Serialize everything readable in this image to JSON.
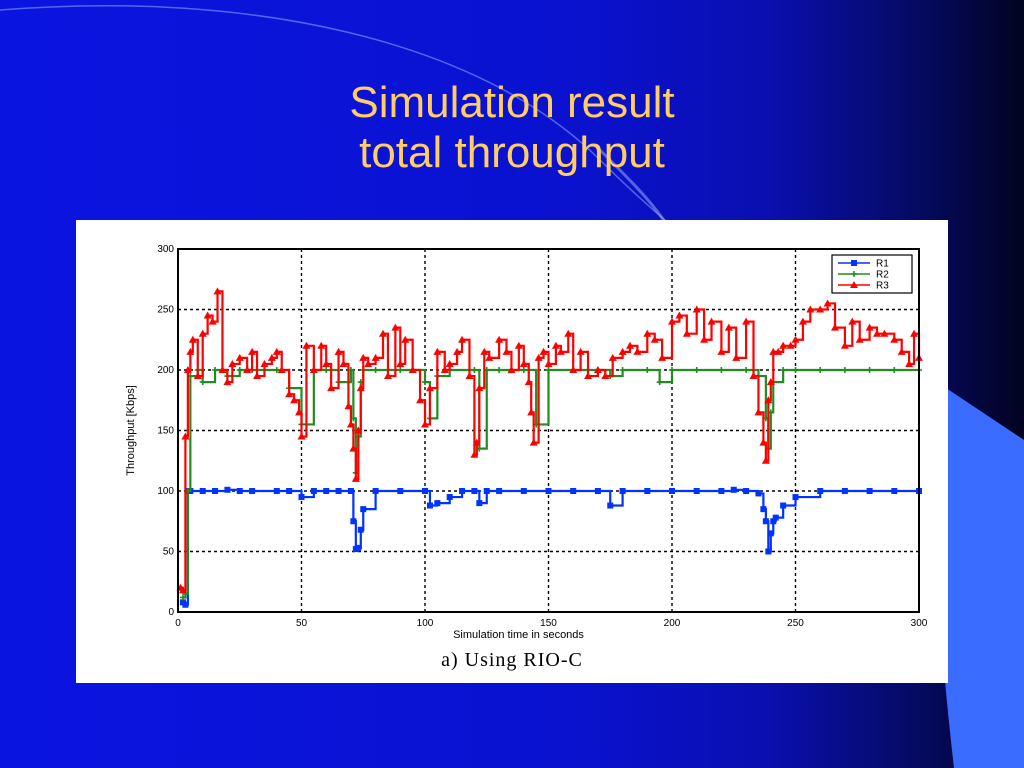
{
  "slide": {
    "title_line1": "Simulation result",
    "title_line2": "total throughput",
    "title_color": "#ffcc66",
    "background_color": "#0a14e0"
  },
  "figure": {
    "caption": "a) Using RIO-C"
  },
  "chart_data": {
    "type": "line",
    "xlabel": "Simulation time in seconds",
    "ylabel": "Throughput [Kbps]",
    "xlim": [
      0,
      300
    ],
    "ylim": [
      0,
      300
    ],
    "xticks": [
      0,
      50,
      100,
      150,
      200,
      250,
      300
    ],
    "yticks": [
      0,
      50,
      100,
      150,
      200,
      250,
      300
    ],
    "grid": true,
    "grid_style": "dotted",
    "legend_position": "top-right",
    "series": [
      {
        "name": "R1",
        "color": "#0033ff",
        "marker": "square",
        "x": [
          2,
          3,
          4,
          5,
          10,
          15,
          20,
          25,
          30,
          40,
          45,
          50,
          55,
          60,
          65,
          70,
          71,
          72,
          73,
          74,
          75,
          80,
          90,
          100,
          102,
          105,
          110,
          115,
          120,
          122,
          125,
          130,
          140,
          150,
          160,
          170,
          175,
          180,
          190,
          200,
          210,
          220,
          225,
          230,
          235,
          237,
          238,
          239,
          240,
          241,
          242,
          245,
          250,
          260,
          270,
          280,
          290,
          300
        ],
        "y": [
          8,
          6,
          100,
          100,
          100,
          100,
          101,
          100,
          100,
          100,
          100,
          95,
          100,
          100,
          100,
          100,
          75,
          52,
          53,
          68,
          85,
          100,
          100,
          100,
          88,
          90,
          95,
          100,
          100,
          90,
          100,
          100,
          100,
          100,
          100,
          100,
          88,
          100,
          100,
          100,
          100,
          100,
          101,
          100,
          98,
          85,
          75,
          50,
          65,
          75,
          78,
          88,
          95,
          100,
          100,
          100,
          100,
          100
        ]
      },
      {
        "name": "R2",
        "color": "#228b22",
        "marker": "plus",
        "x": [
          2,
          3,
          4,
          5,
          8,
          10,
          15,
          20,
          25,
          30,
          40,
          45,
          50,
          55,
          60,
          65,
          70,
          71,
          72,
          73,
          74,
          75,
          80,
          90,
          100,
          102,
          105,
          110,
          120,
          122,
          125,
          130,
          140,
          145,
          150,
          160,
          170,
          175,
          180,
          190,
          195,
          200,
          210,
          220,
          230,
          235,
          238,
          239,
          240,
          241,
          245,
          250,
          260,
          270,
          280,
          290,
          300
        ],
        "y": [
          12,
          15,
          100,
          195,
          200,
          190,
          200,
          195,
          200,
          200,
          200,
          185,
          155,
          200,
          200,
          190,
          200,
          160,
          115,
          145,
          190,
          200,
          200,
          200,
          190,
          160,
          195,
          200,
          200,
          135,
          200,
          200,
          200,
          155,
          200,
          200,
          200,
          195,
          200,
          200,
          190,
          200,
          200,
          200,
          200,
          195,
          160,
          135,
          165,
          190,
          200,
          200,
          200,
          200,
          200,
          200,
          200
        ]
      },
      {
        "name": "R3",
        "color": "#ff0000",
        "marker": "triangle",
        "x": [
          1,
          2,
          3,
          4,
          5,
          6,
          8,
          10,
          12,
          14,
          16,
          18,
          20,
          22,
          25,
          28,
          30,
          32,
          35,
          38,
          40,
          42,
          45,
          47,
          49,
          50,
          52,
          55,
          58,
          60,
          62,
          65,
          67,
          69,
          70,
          71,
          72,
          73,
          74,
          75,
          77,
          80,
          83,
          85,
          88,
          90,
          92,
          95,
          98,
          100,
          102,
          105,
          108,
          110,
          113,
          115,
          118,
          120,
          121,
          122,
          124,
          126,
          130,
          133,
          135,
          138,
          140,
          142,
          143,
          144,
          146,
          148,
          150,
          153,
          155,
          158,
          160,
          163,
          166,
          170,
          173,
          176,
          180,
          183,
          186,
          190,
          193,
          196,
          200,
          203,
          206,
          210,
          213,
          216,
          220,
          223,
          226,
          230,
          233,
          235,
          237,
          238,
          239,
          240,
          241,
          243,
          245,
          248,
          250,
          253,
          256,
          260,
          263,
          266,
          270,
          273,
          276,
          280,
          283,
          286,
          290,
          293,
          296,
          298,
          300
        ],
        "y": [
          20,
          18,
          145,
          200,
          215,
          225,
          195,
          230,
          245,
          240,
          265,
          200,
          190,
          205,
          210,
          200,
          215,
          195,
          205,
          210,
          215,
          200,
          180,
          175,
          165,
          145,
          220,
          200,
          220,
          205,
          185,
          215,
          205,
          170,
          155,
          135,
          110,
          150,
          185,
          210,
          205,
          210,
          230,
          195,
          235,
          205,
          225,
          200,
          175,
          155,
          185,
          215,
          200,
          205,
          215,
          225,
          195,
          130,
          140,
          185,
          215,
          210,
          225,
          215,
          200,
          220,
          205,
          190,
          165,
          140,
          210,
          215,
          205,
          220,
          215,
          230,
          200,
          215,
          195,
          200,
          195,
          210,
          215,
          220,
          215,
          230,
          225,
          210,
          240,
          245,
          230,
          250,
          225,
          240,
          215,
          235,
          210,
          240,
          195,
          165,
          140,
          125,
          175,
          190,
          215,
          215,
          220,
          220,
          225,
          240,
          250,
          250,
          255,
          235,
          220,
          240,
          225,
          235,
          230,
          230,
          225,
          215,
          205,
          230,
          210
        ]
      }
    ]
  }
}
